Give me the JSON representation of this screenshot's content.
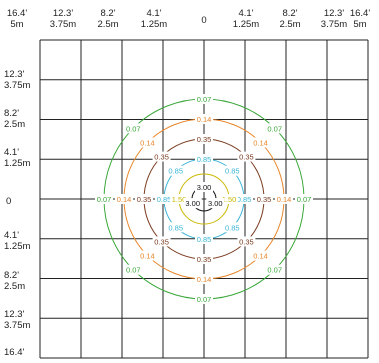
{
  "x_ticks": [
    {
      "ft": "16.4'",
      "m": "5m"
    },
    {
      "ft": "12.3'",
      "m": "3.75m"
    },
    {
      "ft": "8.2'",
      "m": "2.5m"
    },
    {
      "ft": "4.1'",
      "m": "1.25m"
    },
    {
      "ft": "0",
      "m": ""
    },
    {
      "ft": "4.1'",
      "m": "1.25m"
    },
    {
      "ft": "8.2'",
      "m": "2.5m"
    },
    {
      "ft": "12.3'",
      "m": "3.75m"
    },
    {
      "ft": "16.4'",
      "m": "5m"
    }
  ],
  "y_ticks": [
    {
      "ft": "12.3'",
      "m": "3.75m"
    },
    {
      "ft": "8.2'",
      "m": "2.5m"
    },
    {
      "ft": "4.1'",
      "m": "1.25m"
    },
    {
      "ft": "0",
      "m": ""
    },
    {
      "ft": "4.1'",
      "m": "1.25m"
    },
    {
      "ft": "8.2'",
      "m": "2.5m"
    },
    {
      "ft": "12.3'",
      "m": "3.75m"
    },
    {
      "ft": "16.4'",
      "m": ""
    }
  ],
  "contours": [
    {
      "level": "0.07",
      "color": "#3aa83a"
    },
    {
      "level": "0.14",
      "color": "#e8862a"
    },
    {
      "level": "0.35",
      "color": "#7a3a1e"
    },
    {
      "level": "0.85",
      "color": "#3bb6d6"
    },
    {
      "level": "1.50",
      "color": "#c9b800"
    },
    {
      "level": "3.00",
      "color": "#111111"
    }
  ]
}
